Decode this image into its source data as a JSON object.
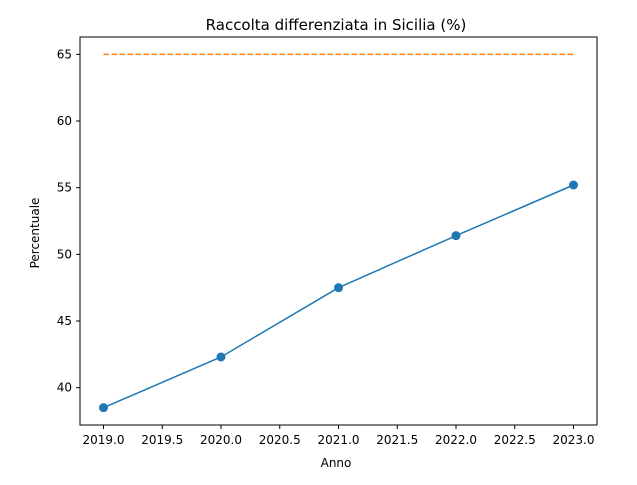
{
  "chart_data": {
    "type": "line",
    "title": "Raccolta differenziata in Sicilia (%)",
    "xlabel": "Anno",
    "ylabel": "Percentuale",
    "xlim": [
      2018.8,
      2023.2
    ],
    "ylim": [
      37.2,
      66.3
    ],
    "xticks": [
      2019.0,
      2019.5,
      2020.0,
      2020.5,
      2021.0,
      2021.5,
      2022.0,
      2022.5,
      2023.0
    ],
    "xtick_labels": [
      "2019.0",
      "2019.5",
      "2020.0",
      "2020.5",
      "2021.0",
      "2021.5",
      "2022.0",
      "2022.5",
      "2023.0"
    ],
    "yticks": [
      40,
      45,
      50,
      55,
      60,
      65
    ],
    "ytick_labels": [
      "40",
      "45",
      "50",
      "55",
      "60",
      "65"
    ],
    "grid": false,
    "series": [
      {
        "color": "#1f77b4",
        "style": "solid",
        "marker": "circle",
        "x": [
          2019,
          2020,
          2021,
          2022,
          2023
        ],
        "y": [
          38.5,
          42.3,
          47.5,
          51.4,
          55.2
        ]
      },
      {
        "color": "#ff7f0e",
        "style": "dashed",
        "marker": "none",
        "x": [
          2019,
          2023
        ],
        "y": [
          65,
          65
        ]
      }
    ]
  }
}
